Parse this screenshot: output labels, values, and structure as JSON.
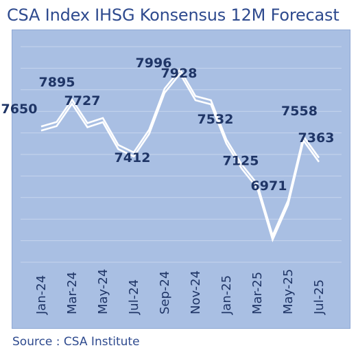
{
  "title": "CSA Index IHSG Konsensus 12M Forecast",
  "source": "Source : CSA Institute",
  "colors": {
    "plot_background": "#a9bfe3",
    "gridline": "#c7d5ee",
    "line": "#ffffff",
    "text": "#1f3566",
    "title": "#2e4a8e"
  },
  "chart_data": {
    "type": "line",
    "title": "CSA Index IHSG Konsensus 12M Forecast",
    "x": [
      "Jan-24",
      "Feb-24",
      "Mar-24",
      "Apr-24",
      "May-24",
      "Jun-24",
      "Jul-24",
      "Aug-24",
      "Sep-24",
      "Oct-24",
      "Nov-24",
      "Dec-24",
      "Jan-25",
      "Feb-25",
      "Mar-25",
      "Apr-25",
      "May-25",
      "Jun-25",
      "Jul-25"
    ],
    "tick_labels": [
      "Jan-24",
      "Mar-24",
      "May-24",
      "Jul-24",
      "Sep-24",
      "Nov-24",
      "Jan-25",
      "Mar-25",
      "May-25",
      "Jul-25"
    ],
    "series": [
      {
        "values": [
          7650,
          7690,
          7895,
          7680,
          7727,
          7480,
          7412,
          7620,
          7996,
          8170,
          7928,
          7890,
          7532,
          7300,
          7125,
          6650,
          6971,
          7558,
          7363
        ]
      }
    ],
    "data_labels": [
      {
        "index": 0,
        "text": "7650"
      },
      {
        "index": 2,
        "text": "7895"
      },
      {
        "index": 4,
        "text": "7727"
      },
      {
        "index": 6,
        "text": "7412"
      },
      {
        "index": 8,
        "text": "7996"
      },
      {
        "index": 10,
        "text": "7928"
      },
      {
        "index": 12,
        "text": "7532"
      },
      {
        "index": 14,
        "text": "7125"
      },
      {
        "index": 16,
        "text": "6971"
      },
      {
        "index": 17,
        "text": "7558"
      },
      {
        "index": 18,
        "text": "7363"
      }
    ],
    "ylim": [
      6450,
      8450
    ],
    "grid": true,
    "legend": "none"
  }
}
